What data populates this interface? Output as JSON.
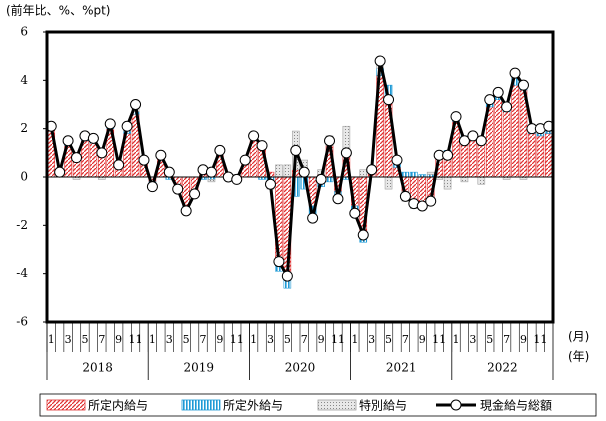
{
  "chart_data": {
    "type": "bar_line",
    "y_label": "(前年比、%、%pt)",
    "x_unit_month": "(月)",
    "x_unit_year": "(年)",
    "categories": [
      "1",
      null,
      "3",
      null,
      "5",
      null,
      "7",
      null,
      "9",
      null,
      "11",
      null,
      "1",
      null,
      "3",
      null,
      "5",
      null,
      "7",
      null,
      "9",
      null,
      "11",
      null,
      "1",
      null,
      "3",
      null,
      "5",
      null,
      "7",
      null,
      "9",
      null,
      "11",
      null,
      "1",
      null,
      "3",
      null,
      "5",
      null,
      "7",
      null,
      "9",
      null,
      "11",
      null,
      "1",
      null,
      "3",
      null,
      "5",
      null,
      "7",
      null,
      "9",
      null,
      "11",
      null
    ],
    "years": [
      "2018",
      "2019",
      "2020",
      "2021",
      "2022"
    ],
    "ylim": [
      -6,
      6
    ],
    "yticks": [
      -6,
      -4,
      -2,
      0,
      2,
      4,
      6
    ],
    "series": [
      {
        "name": "所定内給与",
        "type": "bar",
        "color": "#e03030",
        "values": [
          2.0,
          0.2,
          1.3,
          0.9,
          1.5,
          1.4,
          1.0,
          2.0,
          0.5,
          1.8,
          2.6,
          0.6,
          -0.2,
          0.8,
          0.2,
          -0.4,
          -1.2,
          -0.6,
          0.2,
          0.2,
          0.9,
          0.1,
          0.0,
          0.6,
          1.5,
          1.2,
          0.2,
          -3.5,
          -4.0,
          0.3,
          0.1,
          -1.2,
          0.1,
          1.3,
          -0.6,
          0.9,
          -1.2,
          -2.4,
          0.2,
          4.2,
          3.3,
          0.4,
          -0.6,
          -1.0,
          -1.1,
          -1.0,
          0.9,
          1.0,
          2.3,
          1.6,
          1.6,
          1.5,
          2.9,
          3.2,
          2.7,
          3.8,
          3.6,
          1.8,
          1.7,
          1.8
        ]
      },
      {
        "name": "所定外給与",
        "type": "bar",
        "color": "#1e9ad6",
        "values": [
          0.1,
          0,
          0.1,
          0,
          0.1,
          0.1,
          0,
          0.1,
          0,
          0.1,
          0.1,
          0,
          -0.1,
          0,
          -0.1,
          -0.1,
          -0.1,
          -0.1,
          -0.1,
          -0.1,
          0,
          -0.1,
          -0.1,
          0,
          0,
          -0.1,
          -0.3,
          -0.4,
          -0.6,
          -0.8,
          -0.5,
          -0.4,
          -0.4,
          -0.2,
          -0.3,
          -0.1,
          -0.2,
          -0.3,
          0,
          0.3,
          0.5,
          0.3,
          0.2,
          0.2,
          0.1,
          0.1,
          0.1,
          0.1,
          0.2,
          0.1,
          0.1,
          0.1,
          0.2,
          0.3,
          0.3,
          0.3,
          0.2,
          0.1,
          0.1,
          0.1
        ]
      },
      {
        "name": "特別給与",
        "type": "bar",
        "color": "#a0a0a0",
        "values": [
          0,
          0,
          0.1,
          -0.1,
          0.1,
          0.1,
          -0.1,
          0.1,
          0,
          0.2,
          0.3,
          0.1,
          -0.1,
          0.1,
          0.1,
          0,
          -0.1,
          0,
          0.2,
          -0.1,
          0.2,
          0,
          0.1,
          0.1,
          0.2,
          0.2,
          -0.2,
          0.5,
          0.5,
          1.6,
          0.6,
          -0.1,
          0.2,
          0.4,
          -0.1,
          1.2,
          -0.1,
          0.3,
          0.1,
          0.3,
          -0.5,
          0,
          -0.4,
          -0.3,
          -0.1,
          0.1,
          -0.1,
          -0.5,
          0,
          -0.2,
          0,
          -0.3,
          0.1,
          0,
          -0.1,
          0.2,
          -0.1,
          0.1,
          0.2,
          0.2
        ]
      },
      {
        "name": "現金給与総額",
        "type": "line",
        "color": "#000000",
        "values": [
          2.1,
          0.2,
          1.5,
          0.8,
          1.7,
          1.6,
          1.0,
          2.2,
          0.5,
          2.1,
          3.0,
          0.7,
          -0.4,
          0.9,
          0.2,
          -0.5,
          -1.4,
          -0.7,
          0.3,
          0.2,
          1.1,
          0.0,
          -0.1,
          0.7,
          1.7,
          1.3,
          -0.3,
          -3.5,
          -4.1,
          1.1,
          0.2,
          -1.7,
          -0.1,
          1.5,
          -0.9,
          1.0,
          -1.5,
          -2.4,
          0.3,
          4.8,
          3.2,
          0.7,
          -0.8,
          -1.1,
          -1.2,
          -1.0,
          0.9,
          0.9,
          2.5,
          1.5,
          1.7,
          1.5,
          3.2,
          3.5,
          2.9,
          4.3,
          3.8,
          2.0,
          2.0,
          2.1
        ]
      }
    ]
  }
}
